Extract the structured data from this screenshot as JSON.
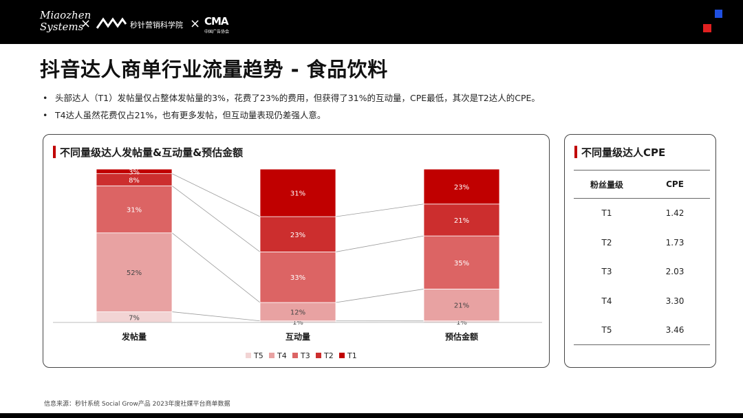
{
  "header": {
    "brand_line1": "Miaozhen",
    "brand_line2": "Systems",
    "separator": "×",
    "school_name": "秒针营销科学院",
    "cma_logo": "CMA",
    "cma_sub": "中国广告协会",
    "accent_blue": "#1f4fe0",
    "accent_red": "#e02020"
  },
  "page": {
    "title": "抖音达人商单行业流量趋势 - 食品饮料",
    "bullets": [
      "头部达人（T1）发帖量仅占整体发帖量的3%，花费了23%的费用，但获得了31%的互动量，CPE最低，其次是T2达人的CPE。",
      "T4达人虽然花费仅占21%，也有更多发帖，但互动量表现仍差强人意。"
    ]
  },
  "left_panel": {
    "title": "不同量级达人发帖量&互动量&预估金额"
  },
  "chart_data": {
    "type": "bar",
    "stacked": true,
    "normalized": true,
    "unit": "%",
    "categories": [
      "发帖量",
      "互动量",
      "预估金额"
    ],
    "series": [
      {
        "name": "T5",
        "color": "#f2d4d4",
        "values": [
          7,
          1,
          1
        ]
      },
      {
        "name": "T4",
        "color": "#e8a2a2",
        "values": [
          52,
          12,
          21
        ]
      },
      {
        "name": "T3",
        "color": "#dc6464",
        "values": [
          31,
          33,
          35
        ]
      },
      {
        "name": "T2",
        "color": "#cc2e2e",
        "values": [
          8,
          23,
          21
        ]
      },
      {
        "name": "T1",
        "color": "#c00000",
        "values": [
          3,
          31,
          23
        ]
      }
    ],
    "labels": [
      [
        "7%",
        "1%",
        "1%"
      ],
      [
        "52%",
        "12%",
        "21%"
      ],
      [
        "31%",
        "33%",
        "35%"
      ],
      [
        "8%",
        "23%",
        "21%"
      ],
      [
        "3%",
        "31%",
        "23%"
      ]
    ],
    "ylim": [
      0,
      100
    ],
    "connector_lines": true,
    "legend_position": "bottom",
    "grid": false
  },
  "right_panel": {
    "title": "不同量级达人CPE",
    "headers": [
      "粉丝量级",
      "CPE"
    ],
    "rows": [
      {
        "tier": "T1",
        "cpe": "1.42"
      },
      {
        "tier": "T2",
        "cpe": "1.73"
      },
      {
        "tier": "T3",
        "cpe": "2.03"
      },
      {
        "tier": "T4",
        "cpe": "3.30"
      },
      {
        "tier": "T5",
        "cpe": "3.46"
      }
    ]
  },
  "footer": {
    "source": "信息来源：秒针系统  Social Grow产品  2023年度社媒平台商单数据"
  }
}
